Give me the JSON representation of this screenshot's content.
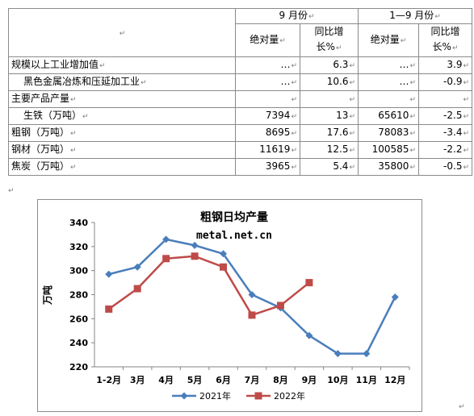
{
  "table": {
    "header": {
      "top_left_mark": "↵",
      "group_sep": "9 月份",
      "group_ytd": "1—9 月份",
      "col_abs_1": "绝对量",
      "col_yoy_1a": "同比增",
      "col_yoy_1b": "长%",
      "col_abs_2": "绝对量",
      "col_yoy_2a": "同比增",
      "col_yoy_2b": "长%"
    },
    "rows": [
      {
        "label": "规模以上工业增加值",
        "indent": false,
        "v1": "…",
        "v2": "6.3",
        "v3": "…",
        "v4": "3.9"
      },
      {
        "label": "黑色金属冶炼和压延加工业",
        "indent": true,
        "v1": "…",
        "v2": "10.6",
        "v3": "…",
        "v4": "-0.9"
      },
      {
        "label": "主要产品产量",
        "indent": false,
        "v1": "",
        "v2": "",
        "v3": "",
        "v4": ""
      },
      {
        "label": "生铁（万吨）",
        "indent": true,
        "v1": "7394",
        "v2": "13",
        "v3": "65610",
        "v4": "-2.5"
      },
      {
        "label": "粗钢（万吨）",
        "indent": false,
        "v1": "8695",
        "v2": "17.6",
        "v3": "78083",
        "v4": "-3.4"
      },
      {
        "label": "钢材（万吨）",
        "indent": false,
        "v1": "11619",
        "v2": "12.5",
        "v3": "100585",
        "v4": "-2.2"
      },
      {
        "label": "焦炭（万吨）",
        "indent": false,
        "v1": "3965",
        "v2": "5.4",
        "v3": "35800",
        "v4": "-0.5"
      }
    ]
  },
  "marks": {
    "cell": "↵",
    "para": "↵"
  },
  "chart_data": {
    "type": "line",
    "title": "粗钢日均产量",
    "subtitle": "metal.net.cn",
    "xlabel": "",
    "ylabel": "万吨",
    "categories": [
      "1-2月",
      "3月",
      "4月",
      "5月",
      "6月",
      "7月",
      "8月",
      "9月",
      "10月",
      "11月",
      "12月"
    ],
    "ylim": [
      220,
      340
    ],
    "yticks": [
      220,
      240,
      260,
      280,
      300,
      320,
      340
    ],
    "grid": false,
    "legend": "bottom",
    "series": [
      {
        "name": "2021年",
        "color": "#4a7ebb",
        "marker": "diamond",
        "values": [
          297,
          303,
          326,
          321,
          314,
          280,
          269,
          246,
          231,
          231,
          278
        ]
      },
      {
        "name": "2022年",
        "color": "#be4b48",
        "marker": "square",
        "values": [
          268,
          285,
          310,
          312,
          303,
          263,
          271,
          290,
          null,
          null,
          null
        ]
      }
    ]
  }
}
